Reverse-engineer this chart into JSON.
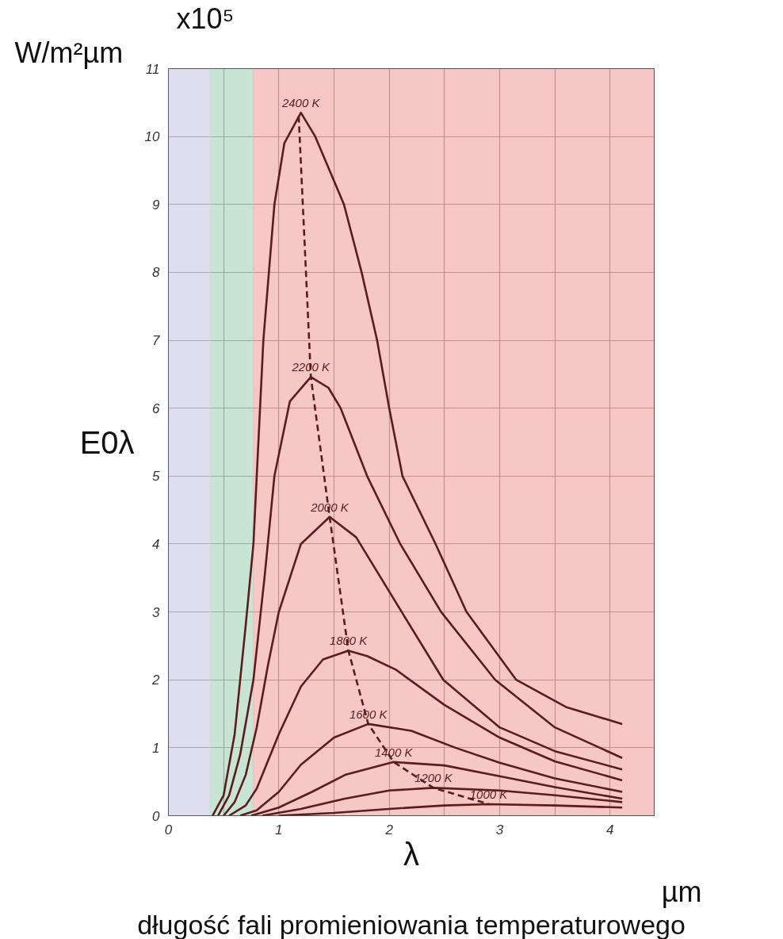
{
  "chart_data": {
    "type": "line",
    "xlabel": "λ",
    "ylabel": "E0λ",
    "annotations": [
      "x10⁵",
      "W/m²µm",
      "µm",
      "długość fali promieniowania temperaturowego"
    ],
    "xlim": [
      0,
      4.4
    ],
    "ylim": [
      0,
      11
    ],
    "xticks": [
      0,
      {
        "value": 0.5,
        "label": null
      },
      1,
      {
        "value": 1.5,
        "label": null
      },
      2,
      {
        "value": 2.5,
        "label": null
      },
      3,
      {
        "value": 3.5,
        "label": null
      },
      4
    ],
    "yticks": [
      0,
      1,
      2,
      3,
      4,
      5,
      6,
      7,
      8,
      9,
      10,
      11
    ],
    "grid": true,
    "marker": "none",
    "line_style": "solid",
    "bands": [
      {
        "axis": "x",
        "from": 0,
        "to": 0.38,
        "label": null,
        "color": "#d4d3ea"
      },
      {
        "axis": "x",
        "from": 0.38,
        "to": 0.77,
        "label": null,
        "color": "#b6dcc6"
      },
      {
        "axis": "x",
        "from": 0.77,
        "to": 4.4,
        "label": null,
        "color": "#f2b4b4"
      }
    ],
    "series": [
      {
        "name": "2400 K",
        "color": "#5a1c1c",
        "x": [
          0.4,
          0.5,
          0.6,
          0.7,
          0.77,
          0.86,
          0.96,
          1.05,
          1.2,
          1.33,
          1.59,
          1.75,
          1.89,
          2.0,
          2.12,
          2.42,
          2.7,
          3.15,
          3.6,
          4.11
        ],
        "values": [
          0,
          0.3,
          1.2,
          2.8,
          4.0,
          7.0,
          9.0,
          9.9,
          10.35,
          10.0,
          9.0,
          8.0,
          7.0,
          6.0,
          5.0,
          4.0,
          3.0,
          2.0,
          1.6,
          1.35
        ]
      },
      {
        "name": "2200 K",
        "color": "#5a1c1c",
        "x": [
          0.45,
          0.55,
          0.65,
          0.77,
          0.87,
          0.96,
          1.1,
          1.29,
          1.45,
          1.56,
          1.8,
          2.1,
          2.47,
          2.96,
          3.5,
          4.11
        ],
        "values": [
          0,
          0.3,
          0.9,
          2.0,
          3.5,
          5.0,
          6.1,
          6.46,
          6.3,
          6.0,
          5.0,
          4.0,
          3.0,
          2.0,
          1.3,
          0.85
        ]
      },
      {
        "name": "2000 K",
        "color": "#5a1c1c",
        "x": [
          0.5,
          0.6,
          0.7,
          0.8,
          0.9,
          1.0,
          1.2,
          1.46,
          1.7,
          2.0,
          2.49,
          3.0,
          3.5,
          4.11
        ],
        "values": [
          0,
          0.2,
          0.6,
          1.3,
          2.2,
          3.0,
          4.0,
          4.4,
          4.1,
          3.3,
          2.0,
          1.3,
          0.95,
          0.68
        ]
      },
      {
        "name": "1800 K",
        "color": "#5a1c1c",
        "x": [
          0.55,
          0.7,
          0.8,
          0.9,
          1.0,
          1.2,
          1.4,
          1.63,
          1.8,
          2.06,
          2.5,
          3.0,
          3.5,
          4.11
        ],
        "values": [
          0,
          0.15,
          0.4,
          0.8,
          1.2,
          1.9,
          2.3,
          2.43,
          2.35,
          2.15,
          1.63,
          1.15,
          0.8,
          0.52
        ]
      },
      {
        "name": "1600 K",
        "color": "#5a1c1c",
        "x": [
          0.65,
          0.8,
          1.0,
          1.2,
          1.5,
          1.81,
          2.2,
          2.6,
          3.0,
          3.5,
          4.11
        ],
        "values": [
          0,
          0.08,
          0.35,
          0.75,
          1.15,
          1.35,
          1.25,
          1.0,
          0.78,
          0.55,
          0.35
        ]
      },
      {
        "name": "1400 K",
        "color": "#5a1c1c",
        "x": [
          0.75,
          1.0,
          1.3,
          1.6,
          2.04,
          2.5,
          3.0,
          3.5,
          4.11
        ],
        "values": [
          0,
          0.12,
          0.35,
          0.6,
          0.79,
          0.74,
          0.58,
          0.42,
          0.25
        ]
      },
      {
        "name": "1200 K",
        "color": "#5a1c1c",
        "x": [
          0.85,
          1.2,
          1.6,
          2.0,
          2.4,
          3.0,
          3.5,
          4.11
        ],
        "values": [
          0,
          0.1,
          0.25,
          0.37,
          0.41,
          0.37,
          0.3,
          0.2
        ]
      },
      {
        "name": "1000 K",
        "color": "#5a1c1c",
        "x": [
          1.0,
          1.5,
          2.0,
          2.5,
          2.9,
          3.5,
          4.11
        ],
        "values": [
          0,
          0.04,
          0.1,
          0.15,
          0.17,
          0.15,
          0.12
        ]
      },
      {
        "color": "#5a1c1c",
        "line_style": "dashed",
        "x": [
          1.18,
          1.29,
          1.46,
          1.63,
          1.81,
          2.04,
          2.4,
          2.9
        ],
        "values": [
          10.3,
          6.46,
          4.4,
          2.43,
          1.35,
          0.79,
          0.41,
          0.17
        ]
      }
    ]
  }
}
